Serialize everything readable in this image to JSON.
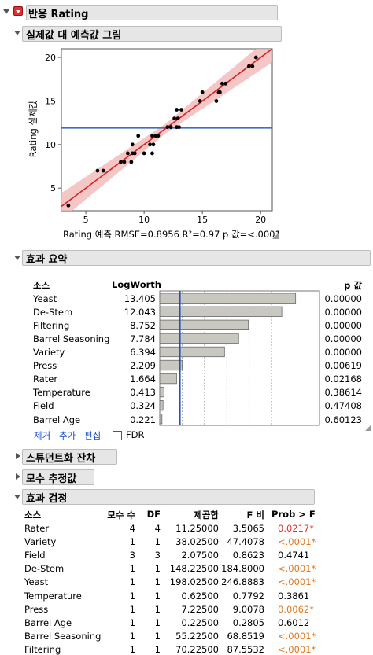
{
  "report": {
    "title": "반응 Rating"
  },
  "plot_section": {
    "title": "실제값 대 예측값 그림",
    "ylabel": "Rating 실제값",
    "xlabel": "Rating 예측 RMSE=0.8956 R²=0.97 p 값=<.0001"
  },
  "chart_data": {
    "type": "scatter",
    "xlabel": "Rating 예측 RMSE=0.8956 R²=0.97 p 값=<.0001",
    "ylabel": "Rating 실제값",
    "xlim": [
      2.9,
      21.0
    ],
    "ylim": [
      2.4,
      21.0
    ],
    "xticks": [
      "5",
      "10",
      "15",
      "20"
    ],
    "yticks": [
      "5",
      "10",
      "15",
      "20"
    ],
    "mean_line_y": 11.9,
    "points": [
      [
        3.5,
        3
      ],
      [
        6.0,
        7
      ],
      [
        6.5,
        7
      ],
      [
        8.0,
        8
      ],
      [
        8.3,
        8
      ],
      [
        8.6,
        9
      ],
      [
        8.9,
        8
      ],
      [
        9.0,
        9
      ],
      [
        9.2,
        9
      ],
      [
        9.0,
        10
      ],
      [
        9.5,
        11
      ],
      [
        10.0,
        9
      ],
      [
        10.5,
        10
      ],
      [
        10.7,
        9
      ],
      [
        10.8,
        10
      ],
      [
        10.7,
        11
      ],
      [
        11.0,
        11
      ],
      [
        11.2,
        11
      ],
      [
        12.0,
        12
      ],
      [
        12.3,
        12
      ],
      [
        12.6,
        13
      ],
      [
        12.8,
        12
      ],
      [
        12.8,
        14
      ],
      [
        12.9,
        13
      ],
      [
        13.0,
        12
      ],
      [
        13.2,
        14
      ],
      [
        14.8,
        15
      ],
      [
        15.0,
        16
      ],
      [
        16.2,
        15
      ],
      [
        16.4,
        16
      ],
      [
        16.5,
        16
      ],
      [
        16.7,
        17
      ],
      [
        17.0,
        17
      ],
      [
        19.0,
        19
      ],
      [
        19.3,
        19
      ],
      [
        19.6,
        20
      ]
    ]
  },
  "summary": {
    "title": "효과 요약",
    "col_source": "소스",
    "col_logworth": "LogWorth",
    "col_p": "p 값",
    "rows": [
      {
        "source": "Yeast",
        "logworth": "13.405",
        "p": "0.00000",
        "lw": 13.405
      },
      {
        "source": "De-Stem",
        "logworth": "12.043",
        "p": "0.00000",
        "lw": 12.043
      },
      {
        "source": "Filtering",
        "logworth": "8.752",
        "p": "0.00000",
        "lw": 8.752
      },
      {
        "source": "Barrel Seasoning",
        "logworth": "7.784",
        "p": "0.00000",
        "lw": 7.784
      },
      {
        "source": "Variety",
        "logworth": "6.394",
        "p": "0.00000",
        "lw": 6.394
      },
      {
        "source": "Press",
        "logworth": "2.209",
        "p": "0.00619",
        "lw": 2.209
      },
      {
        "source": "Rater",
        "logworth": "1.664",
        "p": "0.02168",
        "lw": 1.664
      },
      {
        "source": "Temperature",
        "logworth": "0.413",
        "p": "0.38614",
        "lw": 0.413
      },
      {
        "source": "Field",
        "logworth": "0.324",
        "p": "0.47408",
        "lw": 0.324
      },
      {
        "source": "Barrel Age",
        "logworth": "0.221",
        "p": "0.60123",
        "lw": 0.221
      }
    ],
    "remove_label": "제거",
    "add_label": "추가",
    "edit_label": "편집",
    "fdr_label": "FDR"
  },
  "collapsed": {
    "residuals_title": "스튜던트화 잔차",
    "params_title": "모수 추정값"
  },
  "tests": {
    "title": "효과 검정",
    "headers": {
      "source": "소스",
      "nparm": "모수 수",
      "df": "DF",
      "ss": "제곱합",
      "f": "F 비",
      "prob": "Prob > F"
    },
    "rows": [
      {
        "source": "Rater",
        "nparm": "4",
        "df": "4",
        "ss": "11.25000",
        "f": "3.5065",
        "prob": "0.0217*",
        "sig": "red"
      },
      {
        "source": "Variety",
        "nparm": "1",
        "df": "1",
        "ss": "38.02500",
        "f": "47.4078",
        "prob": "<.0001*",
        "sig": "orange"
      },
      {
        "source": "Field",
        "nparm": "3",
        "df": "3",
        "ss": "2.07500",
        "f": "0.8623",
        "prob": "0.4741",
        "sig": ""
      },
      {
        "source": "De-Stem",
        "nparm": "1",
        "df": "1",
        "ss": "148.22500",
        "f": "184.8000",
        "prob": "<.0001*",
        "sig": "orange"
      },
      {
        "source": "Yeast",
        "nparm": "1",
        "df": "1",
        "ss": "198.02500",
        "f": "246.8883",
        "prob": "<.0001*",
        "sig": "orange"
      },
      {
        "source": "Temperature",
        "nparm": "1",
        "df": "1",
        "ss": "0.62500",
        "f": "0.7792",
        "prob": "0.3861",
        "sig": ""
      },
      {
        "source": "Press",
        "nparm": "1",
        "df": "1",
        "ss": "7.22500",
        "f": "9.0078",
        "prob": "0.0062*",
        "sig": "orange"
      },
      {
        "source": "Barrel Age",
        "nparm": "1",
        "df": "1",
        "ss": "0.22500",
        "f": "0.2805",
        "prob": "0.6012",
        "sig": ""
      },
      {
        "source": "Barrel Seasoning",
        "nparm": "1",
        "df": "1",
        "ss": "55.22500",
        "f": "68.8519",
        "prob": "<.0001*",
        "sig": "orange"
      },
      {
        "source": "Filtering",
        "nparm": "1",
        "df": "1",
        "ss": "70.22500",
        "f": "87.5532",
        "prob": "<.0001*",
        "sig": "orange"
      }
    ]
  }
}
